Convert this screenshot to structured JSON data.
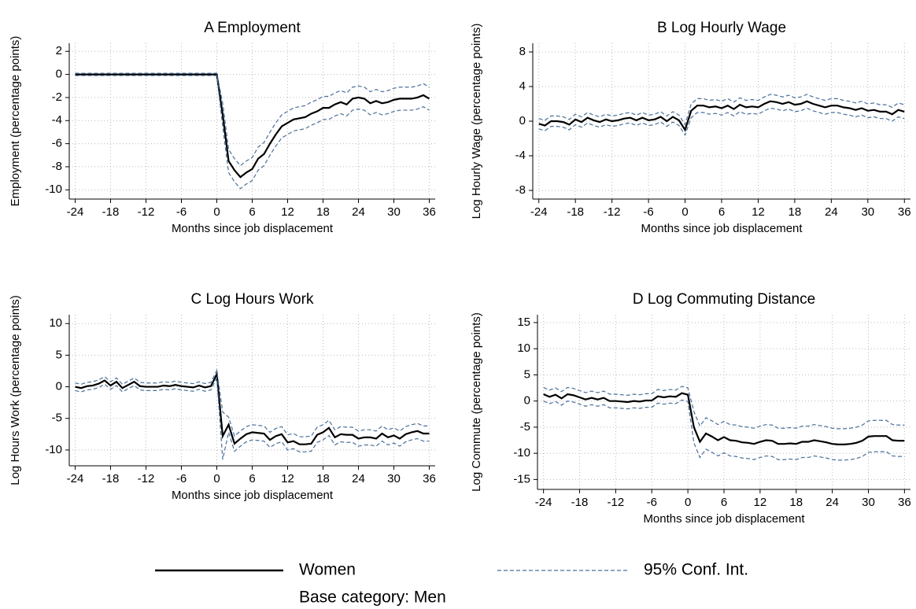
{
  "chart_data": [
    {
      "type": "line",
      "title": "A Employment",
      "xlabel": "Months since job displacement",
      "ylabel": "Employment (percentage points)",
      "x": [
        -24,
        -23,
        -22,
        -21,
        -20,
        -19,
        -18,
        -17,
        -16,
        -15,
        -14,
        -13,
        -12,
        -11,
        -10,
        -9,
        -8,
        -7,
        -6,
        -5,
        -4,
        -3,
        -2,
        -1,
        0,
        1,
        2,
        3,
        4,
        5,
        6,
        7,
        8,
        9,
        10,
        11,
        12,
        13,
        14,
        15,
        16,
        17,
        18,
        19,
        20,
        21,
        22,
        23,
        24,
        25,
        26,
        27,
        28,
        29,
        30,
        31,
        32,
        33,
        34,
        35,
        36
      ],
      "xlim": [
        -25,
        37
      ],
      "xticks": [
        -24,
        -18,
        -12,
        -6,
        0,
        6,
        12,
        18,
        24,
        30,
        36
      ],
      "ylim": [
        -10.8,
        2.7
      ],
      "yticks": [
        -10,
        -8,
        -6,
        -4,
        -2,
        0,
        2
      ],
      "grid": true,
      "series": [
        {
          "name": "Women",
          "color": "#000000",
          "linestyle": "solid",
          "values": [
            0,
            0,
            0,
            0,
            0,
            0,
            0,
            0,
            0,
            0,
            0,
            0,
            0,
            0,
            0,
            0,
            0,
            0,
            0,
            0,
            0,
            0,
            0,
            0,
            0,
            -3.5,
            -7.5,
            -8.3,
            -8.9,
            -8.5,
            -8.2,
            -7.3,
            -6.9,
            -6.0,
            -5.2,
            -4.5,
            -4.2,
            -3.9,
            -3.8,
            -3.7,
            -3.4,
            -3.2,
            -2.9,
            -2.9,
            -2.6,
            -2.4,
            -2.6,
            -2.1,
            -2.0,
            -2.1,
            -2.5,
            -2.3,
            -2.5,
            -2.4,
            -2.2,
            -2.1,
            -2.1,
            -2.1,
            -2.0,
            -1.8,
            -2.1
          ]
        },
        {
          "name": "95% Conf. Int.",
          "color": "#4a6f9a",
          "linestyle": "dashed",
          "upper": [
            0.1,
            0.1,
            0.1,
            0.1,
            0.1,
            0.1,
            0.1,
            0.1,
            0.1,
            0.1,
            0.1,
            0.1,
            0.1,
            0.1,
            0.1,
            0.1,
            0.1,
            0.1,
            0.1,
            0.1,
            0.1,
            0.1,
            0.1,
            0.1,
            0.1,
            -2.5,
            -6.5,
            -7.3,
            -7.9,
            -7.5,
            -7.2,
            -6.3,
            -5.9,
            -5.0,
            -4.2,
            -3.5,
            -3.2,
            -2.9,
            -2.8,
            -2.7,
            -2.4,
            -2.2,
            -1.9,
            -1.9,
            -1.6,
            -1.4,
            -1.6,
            -1.1,
            -1.0,
            -1.1,
            -1.5,
            -1.3,
            -1.5,
            -1.4,
            -1.2,
            -1.1,
            -1.1,
            -1.1,
            -1.0,
            -0.8,
            -1.1
          ],
          "lower": [
            -0.1,
            -0.1,
            -0.1,
            -0.1,
            -0.1,
            -0.1,
            -0.1,
            -0.1,
            -0.1,
            -0.1,
            -0.1,
            -0.1,
            -0.1,
            -0.1,
            -0.1,
            -0.1,
            -0.1,
            -0.1,
            -0.1,
            -0.1,
            -0.1,
            -0.1,
            -0.1,
            -0.1,
            -0.1,
            -4.5,
            -8.5,
            -9.3,
            -9.9,
            -9.5,
            -9.2,
            -8.3,
            -7.9,
            -7.0,
            -6.2,
            -5.5,
            -5.2,
            -4.9,
            -4.8,
            -4.7,
            -4.4,
            -4.2,
            -3.9,
            -3.9,
            -3.6,
            -3.4,
            -3.6,
            -3.1,
            -3.0,
            -3.1,
            -3.5,
            -3.3,
            -3.5,
            -3.4,
            -3.2,
            -3.1,
            -3.1,
            -3.1,
            -3.0,
            -2.8,
            -3.1
          ]
        }
      ]
    },
    {
      "type": "line",
      "title": "B Log Hourly Wage",
      "xlabel": "Months since job displacement",
      "ylabel": "Log Hourly Wage (percentage points)",
      "x": [
        -24,
        -23,
        -22,
        -21,
        -20,
        -19,
        -18,
        -17,
        -16,
        -15,
        -14,
        -13,
        -12,
        -11,
        -10,
        -9,
        -8,
        -7,
        -6,
        -5,
        -4,
        -3,
        -2,
        -1,
        0,
        1,
        2,
        3,
        4,
        5,
        6,
        7,
        8,
        9,
        10,
        11,
        12,
        13,
        14,
        15,
        16,
        17,
        18,
        19,
        20,
        21,
        22,
        23,
        24,
        25,
        26,
        27,
        28,
        29,
        30,
        31,
        32,
        33,
        34,
        35,
        36
      ],
      "xlim": [
        -25,
        37
      ],
      "xticks": [
        -24,
        -18,
        -12,
        -6,
        0,
        6,
        12,
        18,
        24,
        30,
        36
      ],
      "ylim": [
        -9,
        9
      ],
      "yticks": [
        -8,
        -4,
        0,
        4,
        8
      ],
      "grid": true,
      "series": [
        {
          "name": "Women",
          "color": "#000000",
          "linestyle": "solid",
          "values": [
            -0.3,
            -0.5,
            0,
            0,
            -0.1,
            -0.4,
            0.2,
            -0.1,
            0.4,
            0.1,
            -0.1,
            0.2,
            0,
            0.1,
            0.3,
            0.4,
            0.1,
            0.4,
            0.1,
            0.2,
            0.5,
            0,
            0.5,
            0.1,
            -1.0,
            1.2,
            1.8,
            1.8,
            1.6,
            1.7,
            1.5,
            1.8,
            1.4,
            1.9,
            1.6,
            1.7,
            1.6,
            2.0,
            2.3,
            2.2,
            2.0,
            2.2,
            1.9,
            2.0,
            2.3,
            2.0,
            1.8,
            1.6,
            1.8,
            1.8,
            1.6,
            1.5,
            1.3,
            1.5,
            1.2,
            1.3,
            1.1,
            1.1,
            0.8,
            1.3,
            1.1
          ]
        },
        {
          "name": "95% Conf. Int.",
          "color": "#4a6f9a",
          "linestyle": "dashed",
          "upper": [
            0.3,
            0.1,
            0.6,
            0.6,
            0.5,
            0.2,
            0.8,
            0.5,
            1.0,
            0.7,
            0.5,
            0.8,
            0.6,
            0.7,
            0.9,
            1.0,
            0.7,
            1.0,
            0.7,
            0.8,
            1.1,
            0.6,
            1.1,
            0.7,
            -0.4,
            2.0,
            2.6,
            2.6,
            2.4,
            2.5,
            2.3,
            2.6,
            2.2,
            2.7,
            2.4,
            2.5,
            2.4,
            2.8,
            3.1,
            3.0,
            2.8,
            3.0,
            2.7,
            2.8,
            3.1,
            2.8,
            2.6,
            2.4,
            2.6,
            2.6,
            2.4,
            2.3,
            2.1,
            2.3,
            2.0,
            2.1,
            1.9,
            1.9,
            1.6,
            2.1,
            1.9
          ],
          "lower": [
            -0.9,
            -1.1,
            -0.6,
            -0.6,
            -0.7,
            -1.0,
            -0.4,
            -0.7,
            -0.2,
            -0.5,
            -0.7,
            -0.4,
            -0.6,
            -0.5,
            -0.3,
            -0.2,
            -0.5,
            -0.2,
            -0.5,
            -0.4,
            -0.1,
            -0.6,
            -0.1,
            -0.5,
            -1.6,
            0.4,
            1.0,
            1.0,
            0.8,
            0.9,
            0.7,
            1.0,
            0.6,
            1.1,
            0.8,
            0.9,
            0.8,
            1.2,
            1.5,
            1.4,
            1.2,
            1.4,
            1.1,
            1.2,
            1.5,
            1.2,
            1.0,
            0.8,
            1.0,
            1.0,
            0.8,
            0.7,
            0.5,
            0.7,
            0.4,
            0.5,
            0.3,
            0.3,
            0.0,
            0.5,
            0.3
          ]
        }
      ]
    },
    {
      "type": "line",
      "title": "C Log Hours Work",
      "xlabel": "Months since job displacement",
      "ylabel": "Log Hours Work (percentage points)",
      "x": [
        -24,
        -23,
        -22,
        -21,
        -20,
        -19,
        -18,
        -17,
        -16,
        -15,
        -14,
        -13,
        -12,
        -11,
        -10,
        -9,
        -8,
        -7,
        -6,
        -5,
        -4,
        -3,
        -2,
        -1,
        0,
        1,
        2,
        3,
        4,
        5,
        6,
        7,
        8,
        9,
        10,
        11,
        12,
        13,
        14,
        15,
        16,
        17,
        18,
        19,
        20,
        21,
        22,
        23,
        24,
        25,
        26,
        27,
        28,
        29,
        30,
        31,
        32,
        33,
        34,
        35,
        36
      ],
      "xlim": [
        -25,
        37
      ],
      "xticks": [
        -24,
        -18,
        -12,
        -6,
        0,
        6,
        12,
        18,
        24,
        30,
        36
      ],
      "ylim": [
        -12.5,
        11.4
      ],
      "yticks": [
        -10,
        -5,
        0,
        5,
        10
      ],
      "grid": true,
      "series": [
        {
          "name": "Women",
          "color": "#000000",
          "linestyle": "solid",
          "values": [
            0,
            -0.2,
            0.1,
            0.2,
            0.5,
            1.0,
            0.2,
            0.8,
            -0.2,
            0.3,
            0.8,
            0.1,
            0,
            0,
            0,
            0.2,
            0.1,
            0.3,
            0.1,
            0,
            -0.1,
            0.2,
            -0.1,
            0.1,
            2.0,
            -7.8,
            -6.0,
            -9.0,
            -8.2,
            -7.5,
            -7.2,
            -7.3,
            -7.4,
            -8.4,
            -7.8,
            -7.5,
            -8.8,
            -8.6,
            -9.1,
            -9.1,
            -9.0,
            -7.6,
            -7.2,
            -6.5,
            -8.0,
            -7.5,
            -7.6,
            -7.6,
            -8.2,
            -8.0,
            -8.0,
            -8.2,
            -7.4,
            -8.0,
            -7.7,
            -8.2,
            -7.5,
            -7.2,
            -7.0,
            -7.4,
            -7.4
          ]
        },
        {
          "name": "95% Conf. Int.",
          "color": "#4a6f9a",
          "linestyle": "dashed",
          "upper": [
            0.6,
            0.4,
            0.7,
            0.8,
            1.1,
            1.6,
            0.8,
            1.4,
            0.4,
            0.9,
            1.4,
            0.7,
            0.6,
            0.6,
            0.6,
            0.8,
            0.7,
            0.9,
            0.7,
            0.6,
            0.5,
            0.8,
            0.5,
            0.7,
            2.6,
            -4.0,
            -4.8,
            -7.8,
            -7.0,
            -6.3,
            -6.0,
            -6.1,
            -6.2,
            -7.2,
            -6.6,
            -6.3,
            -7.6,
            -7.4,
            -7.9,
            -7.9,
            -7.8,
            -6.4,
            -6.0,
            -5.3,
            -6.8,
            -6.3,
            -6.4,
            -6.4,
            -7.0,
            -6.8,
            -6.8,
            -7.0,
            -6.2,
            -6.8,
            -6.5,
            -7.0,
            -6.3,
            -6.0,
            -5.8,
            -6.2,
            -6.2
          ],
          "lower": [
            -0.6,
            -0.8,
            -0.5,
            -0.4,
            -0.1,
            0.4,
            -0.4,
            0.2,
            -0.8,
            -0.3,
            0.2,
            -0.5,
            -0.6,
            -0.6,
            -0.6,
            -0.4,
            -0.5,
            -0.3,
            -0.5,
            -0.6,
            -0.7,
            -0.4,
            -0.7,
            -0.5,
            1.4,
            -11.5,
            -7.2,
            -10.2,
            -9.4,
            -8.7,
            -8.4,
            -8.5,
            -8.6,
            -9.6,
            -9.0,
            -8.7,
            -10.0,
            -9.8,
            -10.3,
            -10.3,
            -10.2,
            -8.8,
            -8.4,
            -7.7,
            -9.2,
            -8.7,
            -8.8,
            -8.8,
            -9.4,
            -9.2,
            -9.2,
            -9.4,
            -8.6,
            -9.2,
            -8.9,
            -9.4,
            -8.7,
            -8.4,
            -8.2,
            -8.6,
            -8.6
          ]
        }
      ]
    },
    {
      "type": "line",
      "title": "D Log Commuting Distance",
      "xlabel": "Months since job displacement",
      "ylabel": "Log Commute (percentage points)",
      "x": [
        -24,
        -23,
        -22,
        -21,
        -20,
        -19,
        -18,
        -17,
        -16,
        -15,
        -14,
        -13,
        -12,
        -11,
        -10,
        -9,
        -8,
        -7,
        -6,
        -5,
        -4,
        -3,
        -2,
        -1,
        0,
        1,
        2,
        3,
        4,
        5,
        6,
        7,
        8,
        9,
        10,
        11,
        12,
        13,
        14,
        15,
        16,
        17,
        18,
        19,
        20,
        21,
        22,
        23,
        24,
        25,
        26,
        27,
        28,
        29,
        30,
        31,
        32,
        33,
        34,
        35,
        36
      ],
      "xlim": [
        -25,
        37
      ],
      "xticks": [
        -24,
        -18,
        -12,
        -6,
        0,
        6,
        12,
        18,
        24,
        30,
        36
      ],
      "ylim": [
        -16.9,
        16.5
      ],
      "yticks": [
        -15,
        -10,
        -5,
        0,
        5,
        10,
        15
      ],
      "grid": true,
      "series": [
        {
          "name": "Women",
          "color": "#000000",
          "linestyle": "solid",
          "values": [
            1.3,
            0.8,
            1.2,
            0.5,
            1.3,
            1.1,
            0.7,
            0.3,
            0.6,
            0.3,
            0.6,
            0,
            0,
            -0.1,
            -0.2,
            0,
            -0.1,
            0.1,
            0.1,
            0.9,
            0.7,
            0.9,
            0.8,
            1.5,
            1.2,
            -5.0,
            -7.8,
            -6.2,
            -6.8,
            -7.5,
            -6.9,
            -7.5,
            -7.6,
            -7.9,
            -8.0,
            -8.2,
            -7.8,
            -7.5,
            -7.6,
            -8.2,
            -8.2,
            -8.1,
            -8.2,
            -7.8,
            -7.8,
            -7.5,
            -7.7,
            -7.9,
            -8.2,
            -8.3,
            -8.3,
            -8.2,
            -8.0,
            -7.6,
            -6.8,
            -6.7,
            -6.7,
            -6.7,
            -7.5,
            -7.6,
            -7.6
          ]
        },
        {
          "name": "95% Conf. Int.",
          "color": "#4a6f9a",
          "linestyle": "dashed",
          "upper": [
            2.6,
            2.1,
            2.5,
            1.8,
            2.6,
            2.4,
            2.0,
            1.6,
            1.9,
            1.6,
            1.9,
            1.3,
            1.3,
            1.2,
            1.1,
            1.3,
            1.2,
            1.4,
            1.4,
            2.2,
            2.0,
            2.2,
            2.1,
            2.8,
            2.5,
            -2.0,
            -4.8,
            -3.2,
            -3.8,
            -4.5,
            -3.9,
            -4.5,
            -4.6,
            -4.9,
            -5.0,
            -5.2,
            -4.8,
            -4.5,
            -4.6,
            -5.2,
            -5.2,
            -5.1,
            -5.2,
            -4.8,
            -4.8,
            -4.5,
            -4.7,
            -4.9,
            -5.2,
            -5.3,
            -5.3,
            -5.2,
            -5.0,
            -4.6,
            -3.8,
            -3.7,
            -3.7,
            -3.7,
            -4.5,
            -4.6,
            -4.6
          ],
          "lower": [
            0.0,
            -0.5,
            -0.1,
            -0.8,
            0.0,
            -0.2,
            -0.6,
            -1.0,
            -0.7,
            -1.0,
            -0.7,
            -1.3,
            -1.3,
            -1.4,
            -1.5,
            -1.3,
            -1.4,
            -1.2,
            -1.2,
            -0.4,
            -0.6,
            -0.4,
            -0.5,
            0.2,
            -0.1,
            -8.0,
            -10.8,
            -9.2,
            -9.8,
            -10.5,
            -9.9,
            -10.5,
            -10.6,
            -10.9,
            -11.0,
            -11.2,
            -10.8,
            -10.5,
            -10.6,
            -11.2,
            -11.2,
            -11.1,
            -11.2,
            -10.8,
            -10.8,
            -10.5,
            -10.7,
            -10.9,
            -11.2,
            -11.3,
            -11.3,
            -11.2,
            -11.0,
            -10.6,
            -9.8,
            -9.7,
            -9.7,
            -9.7,
            -10.5,
            -10.6,
            -10.6
          ]
        }
      ]
    }
  ],
  "note": "Base category: Men"
}
